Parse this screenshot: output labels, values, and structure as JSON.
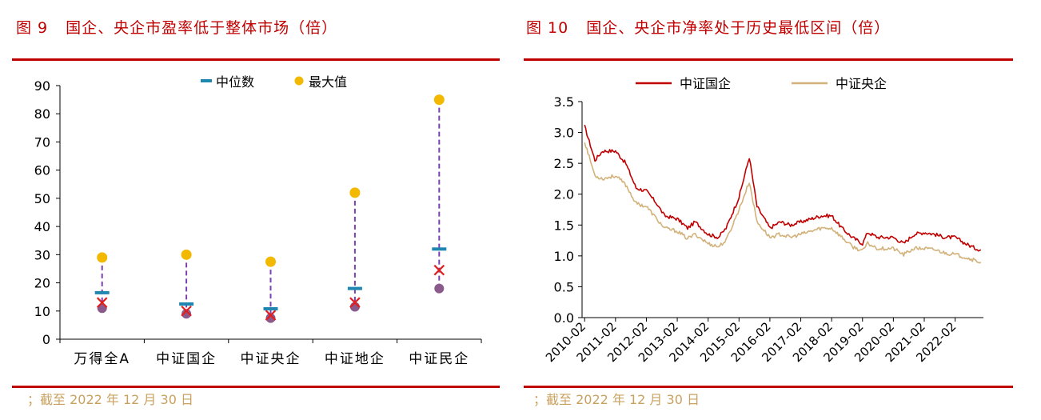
{
  "left": {
    "title_num": "图 9",
    "title_text": "国企、央企市盈率低于整体市场（倍）",
    "note": "；截至 2022 年 12 月 30 日"
  },
  "right": {
    "title_num": "图 10",
    "title_text": "国企、央企市净率处于历史最低区间（倍）",
    "note": "；截至 2022 年 12 月 30 日"
  },
  "colors": {
    "brand_red": "#c00000",
    "median": "#1f86b0",
    "max": "#f3b800",
    "min": "#8b5a8c",
    "cross": "#e0201f",
    "dash": "#7a3fb0",
    "soe": "#c00000",
    "central": "#d2b27a"
  },
  "chart_data": [
    {
      "type": "scatter",
      "categories": [
        "万得全A",
        "中证国企",
        "中证央企",
        "中证地企",
        "中证民企"
      ],
      "series": [
        {
          "name": "中位数",
          "values": [
            16.5,
            12.5,
            10.8,
            18.0,
            32.0
          ]
        },
        {
          "name": "最大值",
          "values": [
            29,
            30,
            27.5,
            52,
            85
          ]
        }
      ],
      "unlabeled_markers": {
        "cross": [
          13.0,
          10.0,
          8.5,
          13.0,
          24.5
        ],
        "min": [
          11.0,
          9.0,
          7.5,
          11.5,
          18.0
        ]
      },
      "ylim": [
        0,
        90
      ],
      "yticks": [
        0,
        10,
        20,
        30,
        40,
        50,
        60,
        70,
        80,
        90
      ],
      "legend_position": "top-center"
    },
    {
      "type": "line",
      "series": [
        {
          "name": "中证国企",
          "x": [
            "2010-02",
            "2010-06",
            "2010-09",
            "2011-02",
            "2011-06",
            "2011-10",
            "2012-02",
            "2012-06",
            "2012-09",
            "2013-02",
            "2013-06",
            "2013-09",
            "2014-02",
            "2014-06",
            "2014-09",
            "2015-02",
            "2015-06",
            "2015-09",
            "2016-02",
            "2016-06",
            "2016-10",
            "2017-02",
            "2017-06",
            "2017-10",
            "2018-02",
            "2018-06",
            "2018-10",
            "2019-02",
            "2019-04",
            "2019-08",
            "2020-02",
            "2020-06",
            "2020-10",
            "2021-02",
            "2021-06",
            "2021-10",
            "2022-02",
            "2022-06",
            "2022-10",
            "2022-12"
          ],
          "values": [
            3.1,
            2.55,
            2.7,
            2.7,
            2.5,
            2.1,
            2.05,
            1.85,
            1.65,
            1.6,
            1.45,
            1.55,
            1.35,
            1.3,
            1.45,
            1.95,
            2.6,
            1.8,
            1.45,
            1.55,
            1.5,
            1.55,
            1.6,
            1.65,
            1.65,
            1.45,
            1.3,
            1.2,
            1.38,
            1.3,
            1.3,
            1.2,
            1.35,
            1.38,
            1.35,
            1.3,
            1.3,
            1.2,
            1.12,
            1.1
          ]
        },
        {
          "name": "中证央企",
          "x": [
            "2010-02",
            "2010-06",
            "2010-09",
            "2011-02",
            "2011-06",
            "2011-10",
            "2012-02",
            "2012-06",
            "2012-09",
            "2013-02",
            "2013-06",
            "2013-09",
            "2014-02",
            "2014-06",
            "2014-09",
            "2015-02",
            "2015-06",
            "2015-09",
            "2016-02",
            "2016-06",
            "2016-10",
            "2017-02",
            "2017-06",
            "2017-10",
            "2018-02",
            "2018-06",
            "2018-10",
            "2019-02",
            "2019-04",
            "2019-08",
            "2020-02",
            "2020-06",
            "2020-10",
            "2021-02",
            "2021-06",
            "2021-10",
            "2022-02",
            "2022-06",
            "2022-10",
            "2022-12"
          ],
          "values": [
            2.85,
            2.3,
            2.25,
            2.3,
            2.15,
            1.85,
            1.8,
            1.6,
            1.45,
            1.4,
            1.28,
            1.35,
            1.2,
            1.15,
            1.25,
            1.75,
            2.2,
            1.55,
            1.3,
            1.35,
            1.3,
            1.35,
            1.4,
            1.45,
            1.45,
            1.3,
            1.15,
            1.08,
            1.2,
            1.12,
            1.12,
            1.02,
            1.12,
            1.12,
            1.1,
            1.05,
            1.02,
            0.98,
            0.92,
            0.9
          ]
        }
      ],
      "xticks": [
        "2010-02",
        "2011-02",
        "2012-02",
        "2013-02",
        "2014-02",
        "2015-02",
        "2016-02",
        "2017-02",
        "2018-02",
        "2019-02",
        "2020-02",
        "2021-02",
        "2022-02"
      ],
      "ylim": [
        0,
        3.5
      ],
      "yticks": [
        "0.0",
        "0.5",
        "1.0",
        "1.5",
        "2.0",
        "2.5",
        "3.0",
        "3.5"
      ],
      "legend_position": "top"
    }
  ]
}
